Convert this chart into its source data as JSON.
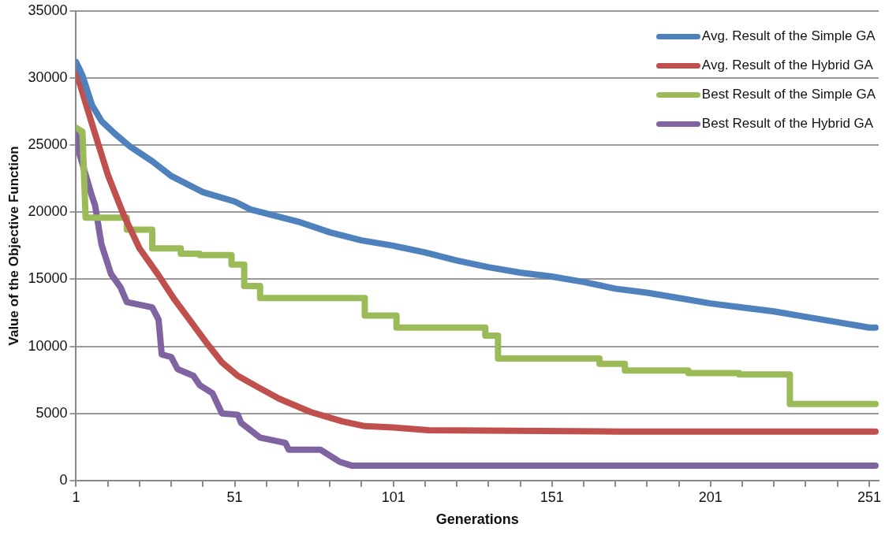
{
  "chart_data": {
    "type": "line",
    "xlabel": "Generations",
    "ylabel": "Value of the Objective Function",
    "xlim": [
      1,
      254
    ],
    "xticks": [
      1,
      {
        "value": 11,
        "label": null
      },
      {
        "value": 21,
        "label": null
      },
      {
        "value": 31,
        "label": null
      },
      {
        "value": 41,
        "label": null
      },
      51,
      {
        "value": 61,
        "label": null
      },
      {
        "value": 71,
        "label": null
      },
      {
        "value": 81,
        "label": null
      },
      {
        "value": 91,
        "label": null
      },
      101,
      {
        "value": 111,
        "label": null
      },
      {
        "value": 121,
        "label": null
      },
      {
        "value": 131,
        "label": null
      },
      {
        "value": 141,
        "label": null
      },
      151,
      {
        "value": 161,
        "label": null
      },
      {
        "value": 171,
        "label": null
      },
      {
        "value": 181,
        "label": null
      },
      {
        "value": 191,
        "label": null
      },
      201,
      {
        "value": 211,
        "label": null
      },
      {
        "value": 221,
        "label": null
      },
      {
        "value": 231,
        "label": null
      },
      {
        "value": 241,
        "label": null
      },
      251
    ],
    "ylim": [
      0,
      35000
    ],
    "yticks": [
      0,
      5000,
      10000,
      15000,
      20000,
      25000,
      30000,
      35000
    ],
    "grid": "y",
    "legend": "top right",
    "marker": "none",
    "line_style": "solid",
    "series": [
      {
        "name": "Avg. Result of the Simple GA",
        "color": "#4f81bd",
        "x": [
          1,
          3,
          6,
          9,
          13,
          18,
          25,
          31,
          41,
          51,
          56,
          71,
          81,
          91,
          101,
          111,
          121,
          131,
          141,
          151,
          161,
          171,
          181,
          191,
          201,
          211,
          221,
          231,
          241,
          251,
          253
        ],
        "values": [
          31200,
          30200,
          28000,
          26800,
          25900,
          24900,
          23800,
          22700,
          21500,
          20800,
          20200,
          19300,
          18500,
          17900,
          17500,
          17000,
          16400,
          15900,
          15500,
          15200,
          14800,
          14300,
          14000,
          13600,
          13200,
          12900,
          12600,
          12200,
          11800,
          11400,
          11400
        ]
      },
      {
        "name": "Avg. Result of the Hybrid GA",
        "color": "#c0504d",
        "x": [
          1,
          6,
          11,
          16,
          21,
          27,
          32,
          37,
          42,
          47,
          52,
          58,
          65,
          75,
          85,
          92,
          101,
          112,
          172,
          253
        ],
        "values": [
          30500,
          26600,
          22800,
          19800,
          17300,
          15300,
          13500,
          11900,
          10300,
          8800,
          7800,
          7000,
          6100,
          5100,
          4400,
          4050,
          3950,
          3750,
          3650,
          3650
        ]
      },
      {
        "name": "Best Result of the Simple GA",
        "color": "#9bbb59",
        "x": [
          1,
          3,
          4,
          17,
          17,
          25,
          25,
          34,
          34,
          40,
          40,
          50,
          50,
          54,
          54,
          59,
          59,
          92,
          92,
          102,
          102,
          130,
          130,
          134,
          134,
          166,
          166,
          174,
          174,
          194,
          194,
          210,
          210,
          226,
          226,
          253
        ],
        "values": [
          26300,
          26000,
          19600,
          19600,
          18700,
          18700,
          17300,
          17300,
          16900,
          16900,
          16800,
          16800,
          16100,
          16100,
          14500,
          14500,
          13600,
          13600,
          12300,
          12300,
          11400,
          11400,
          10800,
          10800,
          9100,
          9100,
          8700,
          8700,
          8200,
          8200,
          8000,
          8000,
          7900,
          7900,
          5700,
          5700
        ]
      },
      {
        "name": "Best Result of the Hybrid GA",
        "color": "#8064a2",
        "x": [
          1,
          2,
          6,
          7,
          9,
          12,
          15,
          17,
          25,
          27,
          28,
          31,
          33,
          38,
          40,
          44,
          47,
          52,
          53,
          59,
          67,
          68,
          78,
          84,
          88,
          95,
          253
        ],
        "values": [
          25900,
          24400,
          21200,
          20500,
          17600,
          15400,
          14400,
          13300,
          12900,
          12000,
          9400,
          9200,
          8300,
          7800,
          7100,
          6500,
          5000,
          4900,
          4300,
          3200,
          2800,
          2300,
          2300,
          1400,
          1100,
          1100,
          1100
        ]
      }
    ]
  }
}
